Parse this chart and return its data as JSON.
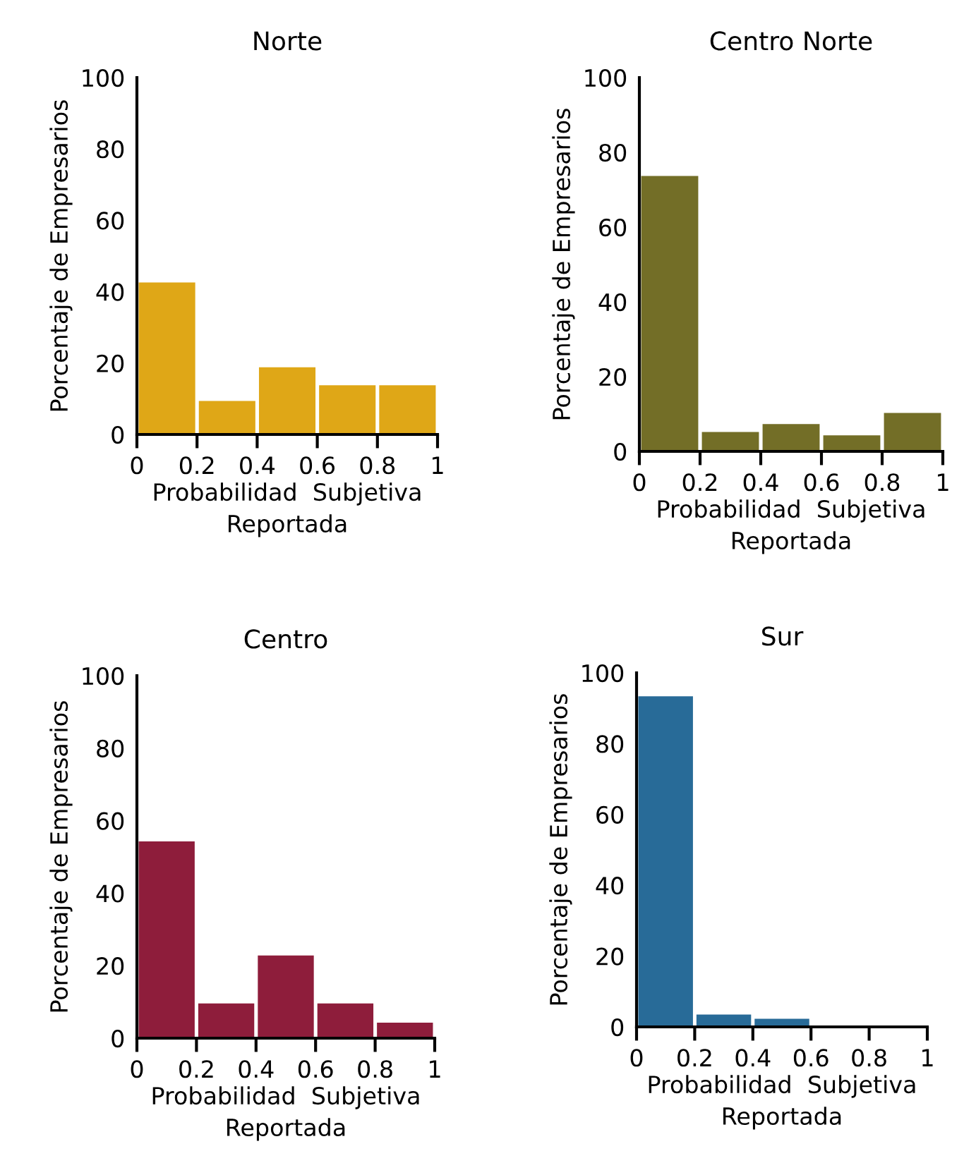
{
  "chart_data": [
    {
      "type": "histogram",
      "title": "Norte",
      "xlabel": "Probabilidad  Subjetiva\nReportada",
      "ylabel": "Porcentaje de Empresarios",
      "bins": [
        0,
        0.2,
        0.4,
        0.6,
        0.8,
        1
      ],
      "values": [
        42.6,
        9.4,
        18.8,
        13.8,
        13.8
      ],
      "color": "#dfa717",
      "xlim": [
        0,
        1
      ],
      "xticks": [
        0,
        0.2,
        0.4,
        0.6,
        0.8,
        1
      ],
      "ylim": [
        0,
        100
      ],
      "yticks": [
        0,
        20,
        40,
        60,
        80,
        100
      ]
    },
    {
      "type": "histogram",
      "title": "Centro Norte",
      "xlabel": "Probabilidad  Subjetiva\nReportada",
      "ylabel": "Porcentaje de Empresarios",
      "bins": [
        0,
        0.2,
        0.4,
        0.6,
        0.8,
        1
      ],
      "values": [
        73.7,
        5.2,
        7.3,
        4.3,
        10.3
      ],
      "color": "#736e27",
      "xlim": [
        0,
        1
      ],
      "xticks": [
        0,
        0.2,
        0.4,
        0.6,
        0.8,
        1
      ],
      "ylim": [
        0,
        100
      ],
      "yticks": [
        0,
        20,
        40,
        60,
        80,
        100
      ]
    },
    {
      "type": "histogram",
      "title": "Centro",
      "xlabel": "Probabilidad  Subjetiva\nReportada",
      "ylabel": "Porcentaje de Empresarios",
      "bins": [
        0,
        0.2,
        0.4,
        0.6,
        0.8,
        1
      ],
      "values": [
        54.3,
        9.6,
        22.8,
        9.6,
        4.3
      ],
      "color": "#8e1d3b",
      "xlim": [
        0,
        1
      ],
      "xticks": [
        0,
        0.2,
        0.4,
        0.6,
        0.8,
        1
      ],
      "ylim": [
        0,
        100
      ],
      "yticks": [
        0,
        20,
        40,
        60,
        80,
        100
      ]
    },
    {
      "type": "histogram",
      "title": "Sur",
      "xlabel": "Probabilidad  Subjetiva\nReportada",
      "ylabel": "Porcentaje de Empresarios",
      "bins": [
        0,
        0.2,
        0.4,
        0.6,
        0.8,
        1
      ],
      "values": [
        93.4,
        3.5,
        2.3,
        0,
        0
      ],
      "color": "#286b98",
      "xlim": [
        0,
        1
      ],
      "xticks": [
        0,
        0.2,
        0.4,
        0.6,
        0.8,
        1
      ],
      "ylim": [
        0,
        100
      ],
      "yticks": [
        0,
        20,
        40,
        60,
        80,
        100
      ]
    }
  ]
}
